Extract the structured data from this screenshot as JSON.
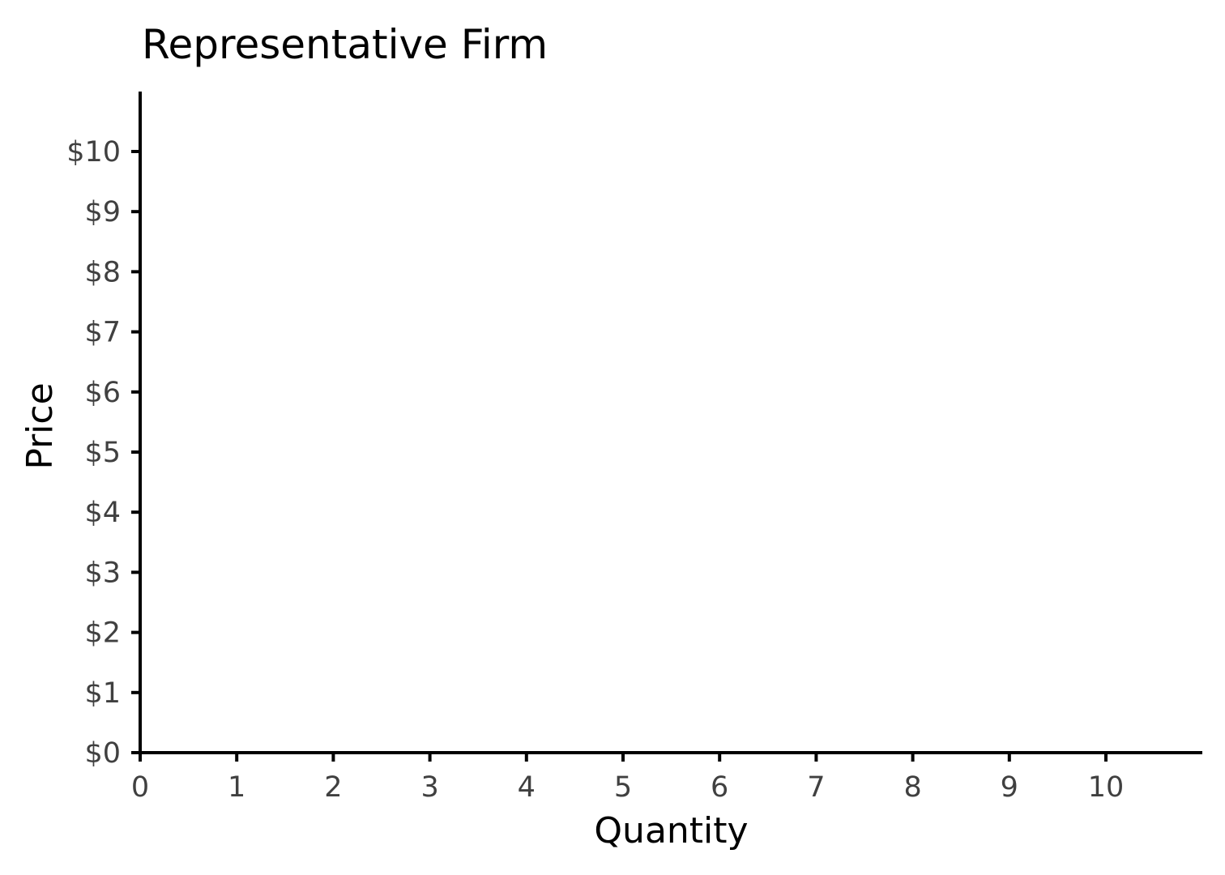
{
  "chart_data": {
    "type": "line",
    "title": "Representative Firm",
    "xlabel": "Quantity",
    "ylabel": "Price",
    "xlim": [
      0,
      11
    ],
    "ylim": [
      0,
      11
    ],
    "x_ticks": [
      {
        "value": 0,
        "label": "0"
      },
      {
        "value": 1,
        "label": "1"
      },
      {
        "value": 2,
        "label": "2"
      },
      {
        "value": 3,
        "label": "3"
      },
      {
        "value": 4,
        "label": "4"
      },
      {
        "value": 5,
        "label": "5"
      },
      {
        "value": 6,
        "label": "6"
      },
      {
        "value": 7,
        "label": "7"
      },
      {
        "value": 8,
        "label": "8"
      },
      {
        "value": 9,
        "label": "9"
      },
      {
        "value": 10,
        "label": "10"
      }
    ],
    "y_ticks": [
      {
        "value": 0,
        "label": "$0"
      },
      {
        "value": 1,
        "label": "$1"
      },
      {
        "value": 2,
        "label": "$2"
      },
      {
        "value": 3,
        "label": "$3"
      },
      {
        "value": 4,
        "label": "$4"
      },
      {
        "value": 5,
        "label": "$5"
      },
      {
        "value": 6,
        "label": "$6"
      },
      {
        "value": 7,
        "label": "$7"
      },
      {
        "value": 8,
        "label": "$8"
      },
      {
        "value": 9,
        "label": "$9"
      },
      {
        "value": 10,
        "label": "$10"
      }
    ],
    "series": [],
    "grid": false,
    "legend": "none"
  }
}
